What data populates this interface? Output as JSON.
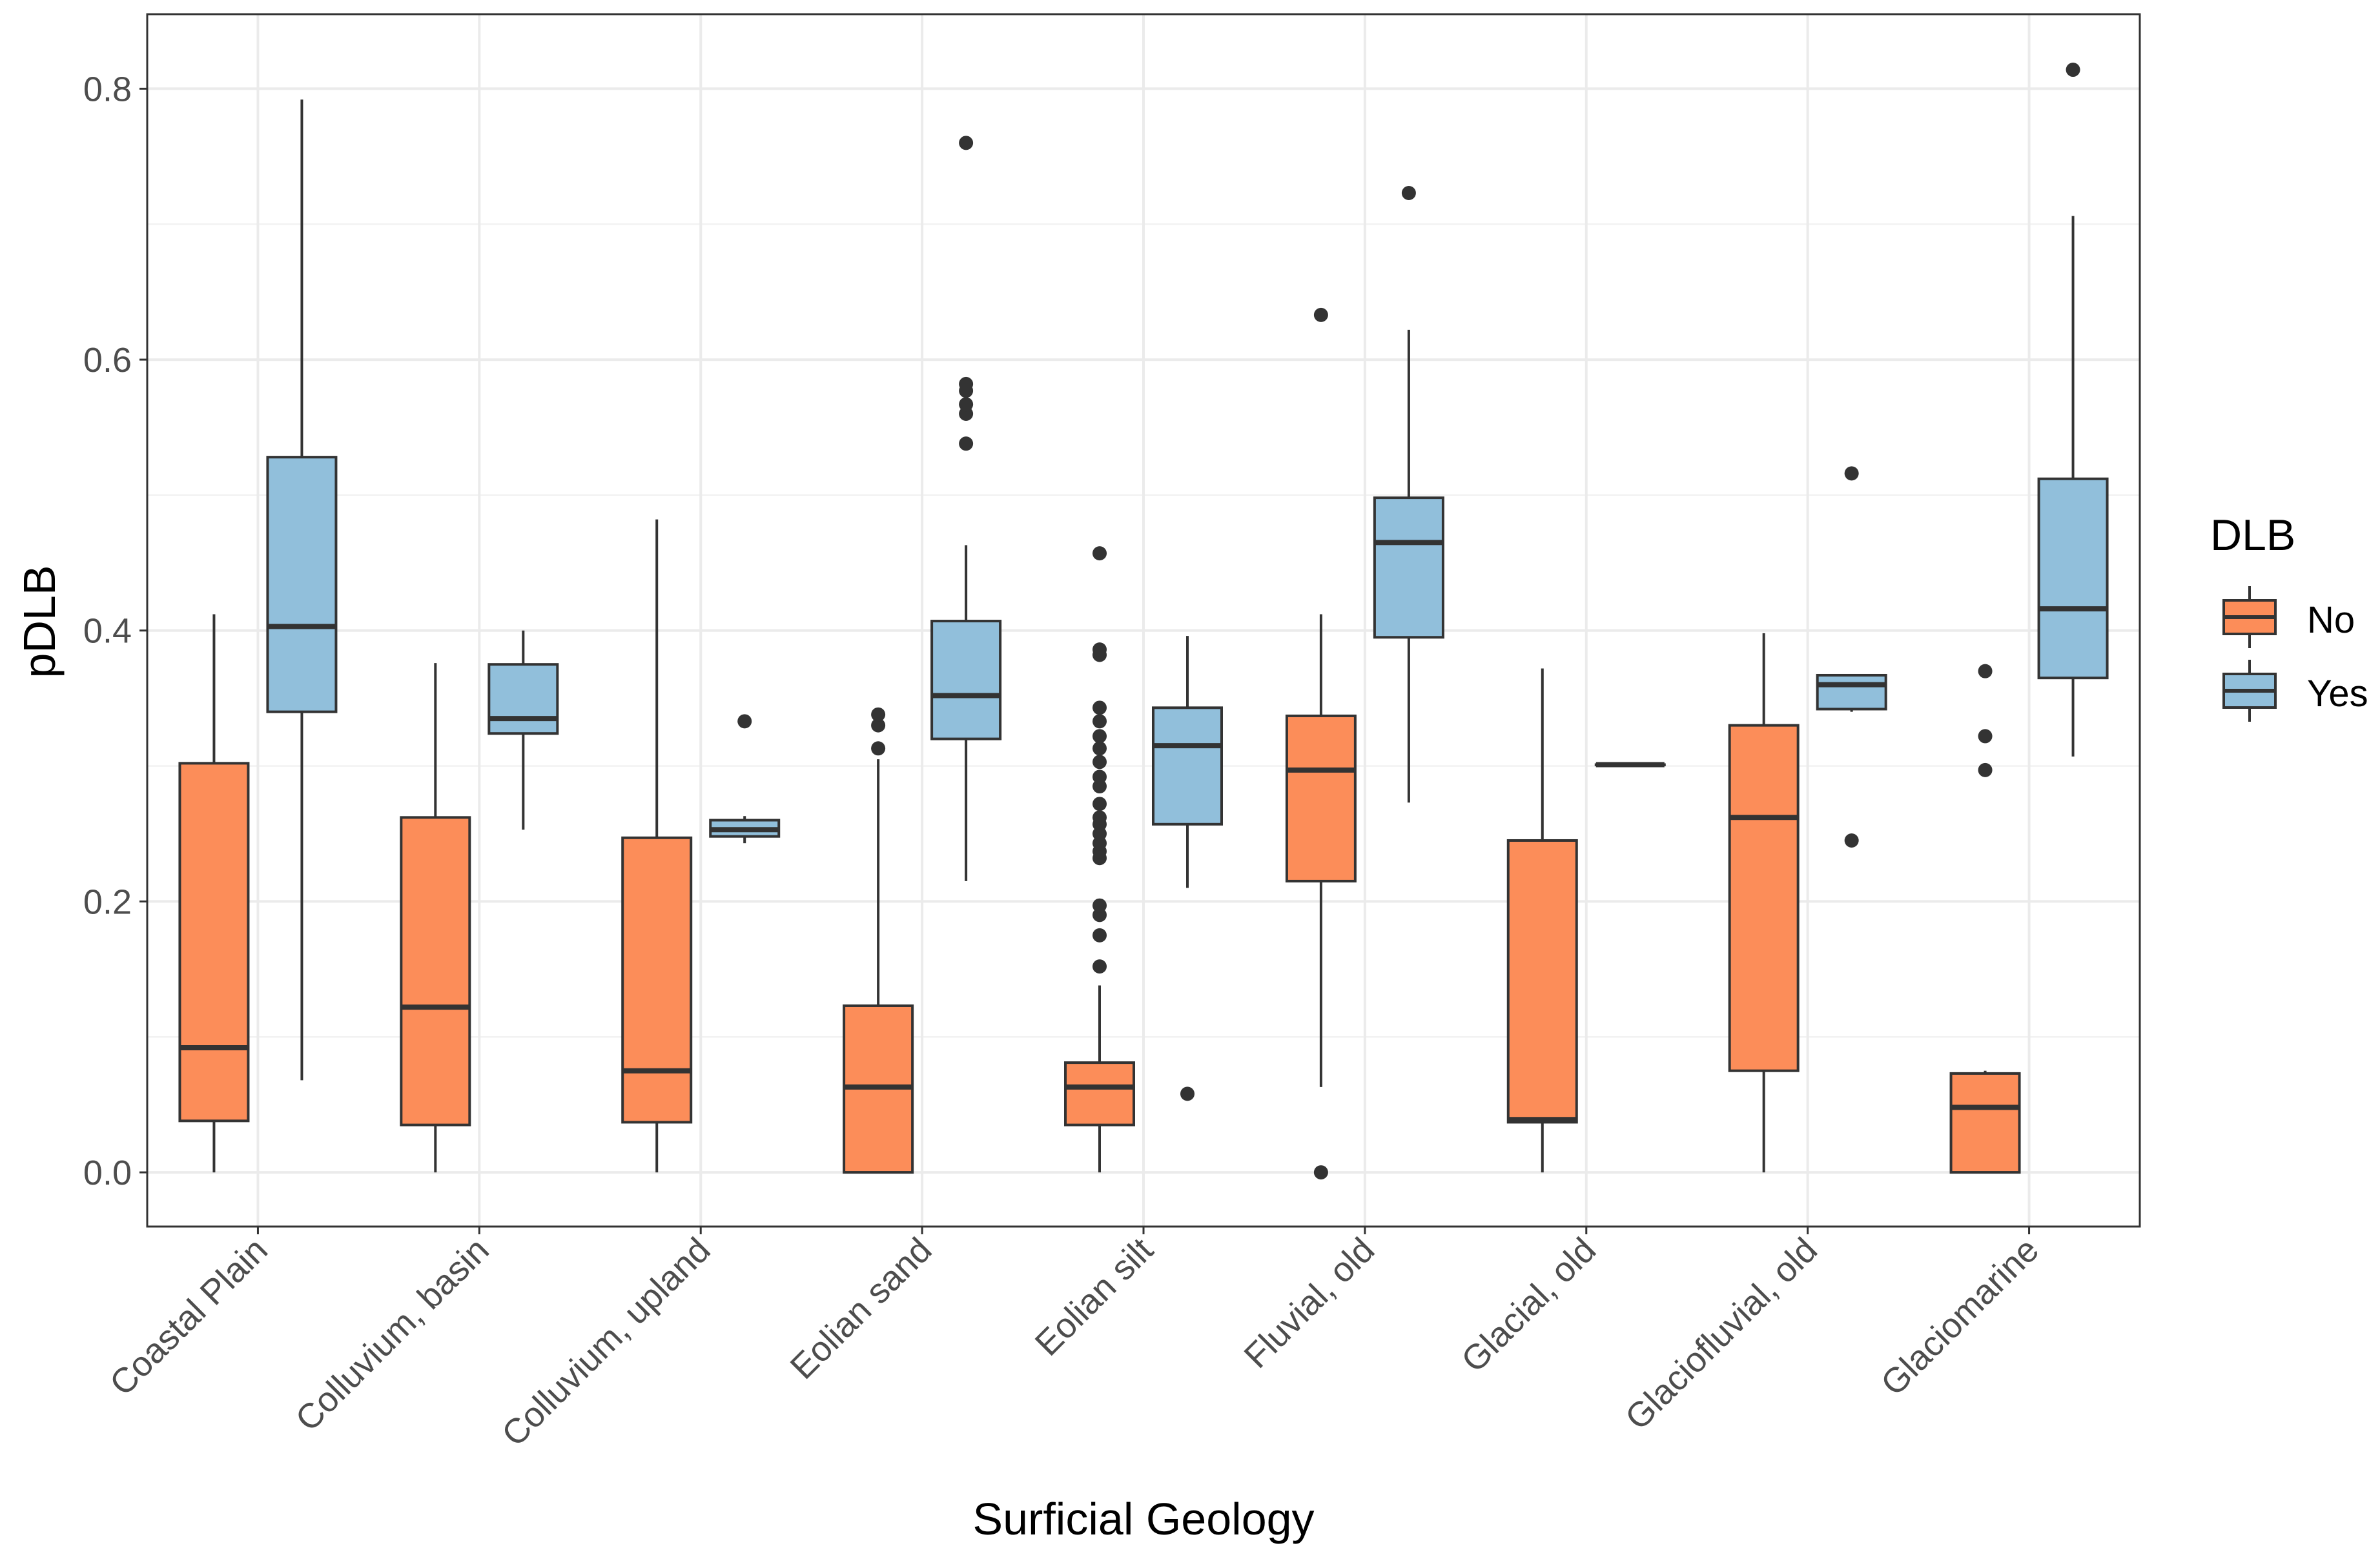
{
  "chart_data": {
    "type": "boxplot",
    "xlabel": "Surficial Geology",
    "ylabel": "pDLB",
    "ylim": [
      -0.04,
      0.855
    ],
    "yticks": [
      0.0,
      0.2,
      0.4,
      0.6,
      0.8
    ],
    "ytick_labels": [
      "0.0",
      "0.2",
      "0.4",
      "0.6",
      "0.8"
    ],
    "grid": true,
    "legend": {
      "title": "DLB",
      "position": "right",
      "entries": [
        {
          "name": "No",
          "color": "#FC8D59"
        },
        {
          "name": "Yes",
          "color": "#91BFDB"
        }
      ]
    },
    "categories": [
      "Coastal Plain",
      "Colluvium, basin",
      "Colluvium, upland",
      "Eolian sand",
      "Eolian silt",
      "Fluvial, old",
      "Glacial, old",
      "Glaciofluvial, old",
      "Glaciomarine"
    ],
    "series": [
      {
        "name": "No",
        "color": "#FC8D59",
        "boxes": [
          {
            "min": 0.0,
            "q1": 0.038,
            "median": 0.092,
            "q3": 0.302,
            "max": 0.412,
            "outliers": []
          },
          {
            "min": 0.0,
            "q1": 0.035,
            "median": 0.122,
            "q3": 0.262,
            "max": 0.376,
            "outliers": []
          },
          {
            "min": 0.0,
            "q1": 0.037,
            "median": 0.075,
            "q3": 0.247,
            "max": 0.482,
            "outliers": []
          },
          {
            "min": 0.0,
            "q1": 0.0,
            "median": 0.063,
            "q3": 0.123,
            "max": 0.305,
            "outliers": [
              0.313,
              0.33,
              0.338
            ]
          },
          {
            "min": 0.0,
            "q1": 0.035,
            "median": 0.063,
            "q3": 0.081,
            "max": 0.138,
            "outliers": [
              0.152,
              0.175,
              0.19,
              0.197,
              0.232,
              0.237,
              0.243,
              0.25,
              0.257,
              0.262,
              0.272,
              0.285,
              0.292,
              0.303,
              0.313,
              0.322,
              0.333,
              0.343,
              0.382,
              0.386,
              0.457
            ]
          },
          {
            "min": 0.063,
            "q1": 0.215,
            "median": 0.297,
            "q3": 0.337,
            "max": 0.412,
            "outliers": [
              0.0,
              0.633
            ]
          },
          {
            "min": 0.0,
            "q1": 0.037,
            "median": 0.039,
            "q3": 0.245,
            "max": 0.372,
            "outliers": []
          },
          {
            "min": 0.0,
            "q1": 0.075,
            "median": 0.262,
            "q3": 0.33,
            "max": 0.398,
            "outliers": []
          },
          {
            "min": 0.0,
            "q1": 0.0,
            "median": 0.048,
            "q3": 0.073,
            "max": 0.075,
            "outliers": [
              0.297,
              0.322,
              0.37
            ]
          }
        ]
      },
      {
        "name": "Yes",
        "color": "#91BFDB",
        "boxes": [
          {
            "min": 0.068,
            "q1": 0.34,
            "median": 0.403,
            "q3": 0.528,
            "max": 0.792,
            "outliers": []
          },
          {
            "min": 0.253,
            "q1": 0.324,
            "median": 0.335,
            "q3": 0.375,
            "max": 0.4,
            "outliers": []
          },
          {
            "min": 0.243,
            "q1": 0.248,
            "median": 0.253,
            "q3": 0.26,
            "max": 0.263,
            "outliers": [
              0.333
            ]
          },
          {
            "min": 0.215,
            "q1": 0.32,
            "median": 0.352,
            "q3": 0.407,
            "max": 0.463,
            "outliers": [
              0.538,
              0.56,
              0.567,
              0.577,
              0.582,
              0.76
            ]
          },
          {
            "min": 0.21,
            "q1": 0.257,
            "median": 0.315,
            "q3": 0.343,
            "max": 0.396,
            "outliers": [
              0.058
            ]
          },
          {
            "min": 0.273,
            "q1": 0.395,
            "median": 0.465,
            "q3": 0.498,
            "max": 0.622,
            "outliers": [
              0.723
            ]
          },
          {
            "min": 0.301,
            "q1": 0.301,
            "median": 0.301,
            "q3": 0.301,
            "max": 0.301,
            "outliers": []
          },
          {
            "min": 0.34,
            "q1": 0.342,
            "median": 0.36,
            "q3": 0.367,
            "max": 0.367,
            "outliers": [
              0.245,
              0.516
            ]
          },
          {
            "min": 0.307,
            "q1": 0.365,
            "median": 0.416,
            "q3": 0.512,
            "max": 0.706,
            "outliers": [
              0.814
            ]
          }
        ]
      }
    ]
  }
}
